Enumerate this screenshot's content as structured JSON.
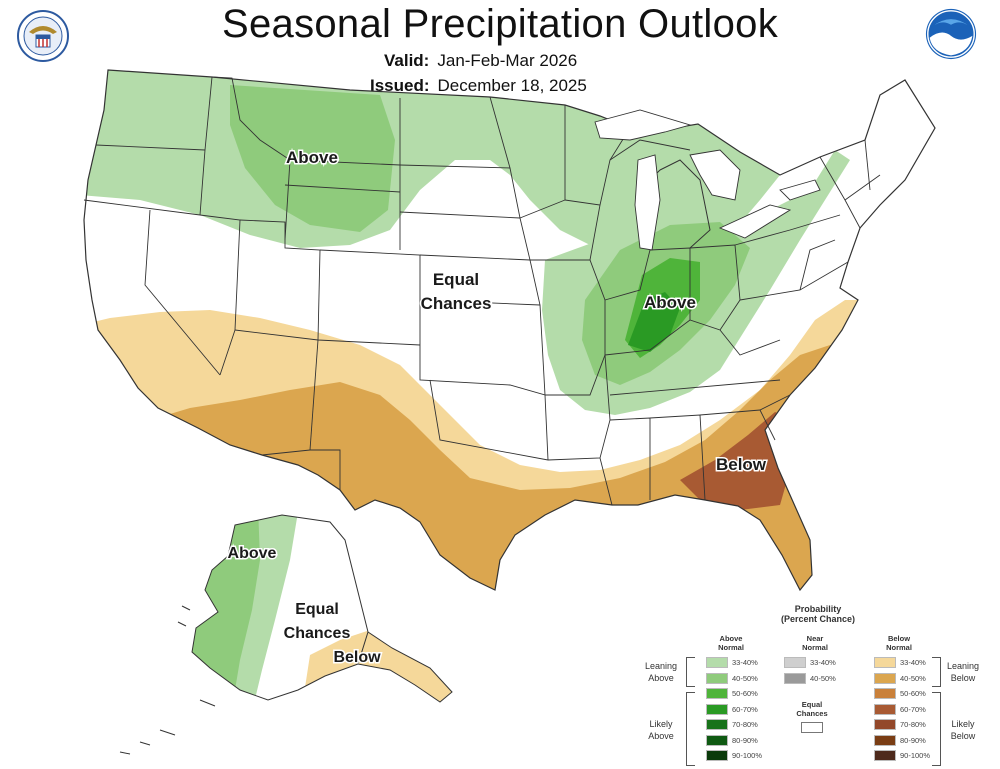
{
  "header": {
    "title": "Seasonal Precipitation Outlook",
    "valid_label": "Valid:",
    "valid_value": "Jan-Feb-Mar 2026",
    "issued_label": "Issued:",
    "issued_value": "December 18, 2025"
  },
  "map_labels": {
    "north_above": "Above",
    "central_equal_1": "Equal",
    "central_equal_2": "Chances",
    "ohio_above": "Above",
    "southeast_below": "Below",
    "alaska_above": "Above",
    "alaska_equal_1": "Equal",
    "alaska_equal_2": "Chances",
    "alaska_below": "Below"
  },
  "legend": {
    "title_1": "Probability",
    "title_2": "(Percent Chance)",
    "above_head_1": "Above",
    "above_head_2": "Normal",
    "near_head_1": "Near",
    "near_head_2": "Normal",
    "below_head_1": "Below",
    "below_head_2": "Normal",
    "equal_1": "Equal",
    "equal_2": "Chances",
    "leaning_above_1": "Leaning",
    "leaning_above_2": "Above",
    "likely_above_1": "Likely",
    "likely_above_2": "Above",
    "leaning_below_1": "Leaning",
    "leaning_below_2": "Below",
    "likely_below_1": "Likely",
    "likely_below_2": "Below",
    "above_bins": [
      {
        "label": "33-40%",
        "color": "#b4dcaa"
      },
      {
        "label": "40-50%",
        "color": "#8fcb7c"
      },
      {
        "label": "50-60%",
        "color": "#4fb43a"
      },
      {
        "label": "60-70%",
        "color": "#2a9a24"
      },
      {
        "label": "70-80%",
        "color": "#18731a"
      },
      {
        "label": "80-90%",
        "color": "#0f5a12"
      },
      {
        "label": "90-100%",
        "color": "#0a3a0a"
      }
    ],
    "near_bins": [
      {
        "label": "33-40%",
        "color": "#cfcfcf"
      },
      {
        "label": "40-50%",
        "color": "#9a9a9a"
      }
    ],
    "below_bins": [
      {
        "label": "33-40%",
        "color": "#f5d89a"
      },
      {
        "label": "40-50%",
        "color": "#dba64f"
      },
      {
        "label": "50-60%",
        "color": "#c9803a"
      },
      {
        "label": "60-70%",
        "color": "#a85a33"
      },
      {
        "label": "70-80%",
        "color": "#93482a"
      },
      {
        "label": "80-90%",
        "color": "#7a3d14"
      },
      {
        "label": "90-100%",
        "color": "#4e2a1c"
      }
    ]
  },
  "colors": {
    "above_33": "#b4dcaa",
    "above_40": "#8fcb7c",
    "above_50": "#4fb43a",
    "above_60": "#2a9a24",
    "below_33": "#f5d89a",
    "below_40": "#dba64f",
    "below_50": "#c9803a",
    "below_60": "#a85a33",
    "equal": "#ffffff",
    "border": "#333333"
  }
}
